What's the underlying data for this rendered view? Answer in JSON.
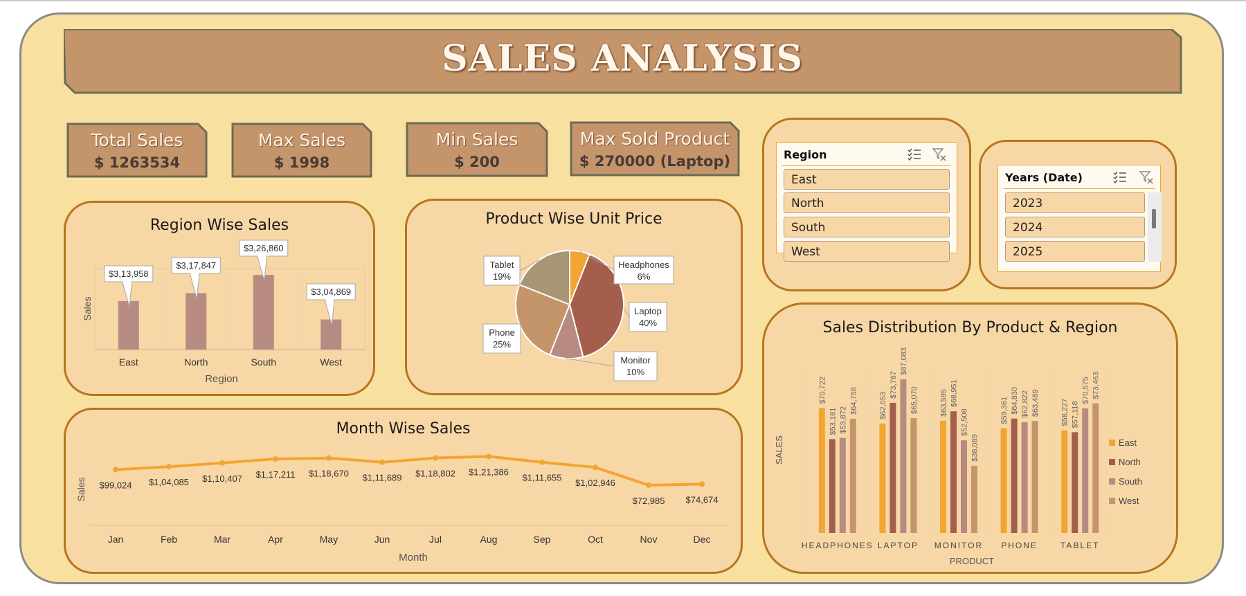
{
  "title": "SALES ANALYSIS",
  "kpis": [
    {
      "label": "Total Sales",
      "value": "$ 1263534"
    },
    {
      "label": "Max Sales",
      "value": "$ 1998"
    },
    {
      "label": "Min Sales",
      "value": "$ 200"
    },
    {
      "label": "Max Sold Product",
      "value": "$ 270000 (Laptop)"
    }
  ],
  "colors": {
    "east": "#f2a533",
    "north": "#a35f4b",
    "south": "#b78a82",
    "west": "#c4956a",
    "bar": "#b78a82",
    "line": "#f2a533"
  },
  "region_chart": {
    "title": "Region Wise Sales",
    "chart_data": {
      "type": "bar",
      "categories": [
        "East",
        "North",
        "South",
        "West"
      ],
      "values": [
        313958,
        317847,
        326860,
        304869
      ],
      "data_labels": [
        "$3,13,958",
        "$3,17,847",
        "$3,26,860",
        "$3,04,869"
      ],
      "xlabel": "Region",
      "ylabel": "Sales",
      "ylim": [
        290000,
        330000
      ],
      "grid": false
    }
  },
  "product_chart": {
    "title": "Product Wise Unit Price",
    "chart_data": {
      "type": "pie",
      "slices": [
        {
          "name": "Headphones",
          "label": "6%",
          "value": 6,
          "color": "#f2a533"
        },
        {
          "name": "Laptop",
          "label": "40%",
          "value": 40,
          "color": "#a35f4b"
        },
        {
          "name": "Monitor",
          "label": "10%",
          "value": 10,
          "color": "#b78a82"
        },
        {
          "name": "Phone",
          "label": "25%",
          "value": 25,
          "color": "#c4956a"
        },
        {
          "name": "Tablet",
          "label": "19%",
          "value": 19,
          "color": "#a89574"
        }
      ]
    }
  },
  "month_chart": {
    "title": "Month Wise Sales",
    "chart_data": {
      "type": "line",
      "categories": [
        "Jan",
        "Feb",
        "Mar",
        "Apr",
        "May",
        "Jun",
        "Jul",
        "Aug",
        "Sep",
        "Oct",
        "Nov",
        "Dec"
      ],
      "values": [
        99024,
        104085,
        110407,
        117211,
        118670,
        111689,
        118802,
        121386,
        111655,
        102946,
        72985,
        74674
      ],
      "data_labels": [
        "$99,024",
        "$1,04,085",
        "$1,10,407",
        "$1,17,211",
        "$1,18,670",
        "$1,11,689",
        "$1,18,802",
        "$1,21,386",
        "$1,11,655",
        "$1,02,946",
        "$72,985",
        "$74,674"
      ],
      "xlabel": "Month",
      "ylabel": "Sales"
    }
  },
  "distribution_chart": {
    "title": "Sales Distribution By Product & Region",
    "chart_data": {
      "type": "bar",
      "categories": [
        "HEADPHONES",
        "LAPTOP",
        "MONITOR",
        "PHONE",
        "TABLET"
      ],
      "series": [
        {
          "name": "East",
          "values": [
            70722,
            62053,
            63595,
            59361,
            58227
          ],
          "labels": [
            "$70,722",
            "$62,053",
            "$63,595",
            "$59,361",
            "$58,227"
          ]
        },
        {
          "name": "North",
          "values": [
            53181,
            73767,
            68951,
            64830,
            57118
          ],
          "labels": [
            "$53,181",
            "$73,767",
            "$68,951",
            "$64,830",
            "$57,118"
          ]
        },
        {
          "name": "South",
          "values": [
            53872,
            87083,
            52508,
            62822,
            70575
          ],
          "labels": [
            "$53,872",
            "$87,083",
            "$52,508",
            "$62,822",
            "$70,575"
          ]
        },
        {
          "name": "West",
          "values": [
            64758,
            65070,
            38089,
            63489,
            73463
          ],
          "labels": [
            "$64,758",
            "$65,070",
            "$38,089",
            "$63,489",
            "$73,463"
          ]
        }
      ],
      "xlabel": "PRODUCT",
      "ylabel": "SALES",
      "ylim": [
        0,
        100000
      ],
      "legend": "right"
    }
  },
  "region_slicer": {
    "header": "Region",
    "items": [
      "East",
      "North",
      "South",
      "West"
    ]
  },
  "year_slicer": {
    "header": "Years (Date)",
    "items": [
      "2023",
      "2024",
      "2025"
    ]
  }
}
